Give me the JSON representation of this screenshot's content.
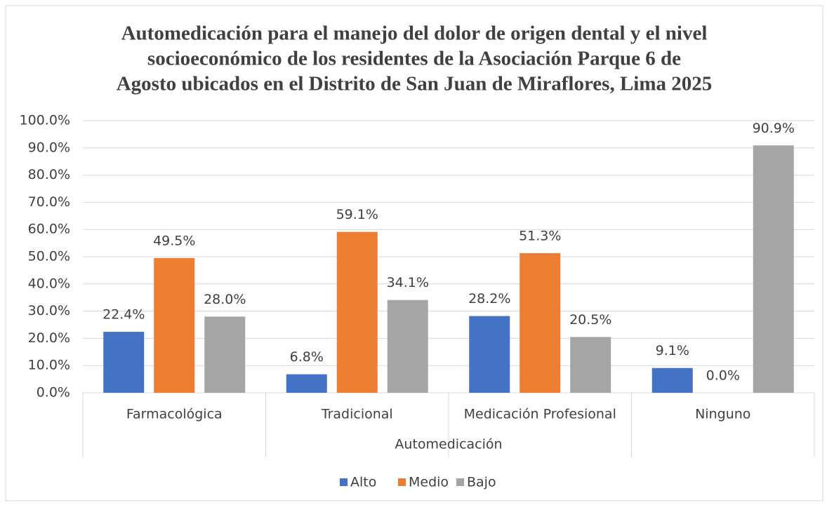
{
  "chart_data": {
    "type": "bar",
    "title": [
      "Automedicación para el manejo del dolor de origen dental y el nivel",
      "socioeconómico de los residentes de la Asociación Parque 6 de",
      "Agosto ubicados en el Distrito de San Juan de Miraflores, Lima 2025"
    ],
    "x_label": "Automedicación",
    "categories": [
      "Farmacológica",
      "Tradicional",
      "Medicación Profesional",
      "Ninguno"
    ],
    "series": [
      {
        "name": "Alto",
        "color": "#4472c4",
        "values": [
          22.4,
          6.8,
          28.2,
          9.1
        ],
        "value_labels": [
          "22.4%",
          "6.8%",
          "28.2%",
          "9.1%"
        ]
      },
      {
        "name": "Medio",
        "color": "#ed7d31",
        "values": [
          49.5,
          59.1,
          51.3,
          0.0
        ],
        "value_labels": [
          "49.5%",
          "59.1%",
          "51.3%",
          "0.0%"
        ]
      },
      {
        "name": "Bajo",
        "color": "#a5a5a5",
        "values": [
          28.0,
          34.1,
          20.5,
          90.9
        ],
        "value_labels": [
          "28.0%",
          "34.1%",
          "20.5%",
          "90.9%"
        ]
      }
    ],
    "ylim": [
      0,
      100
    ],
    "yticks": [
      {
        "value": 0,
        "label": "0.0%"
      },
      {
        "value": 10,
        "label": "10.0%"
      },
      {
        "value": 20,
        "label": "20.0%"
      },
      {
        "value": 30,
        "label": "30.0%"
      },
      {
        "value": 40,
        "label": "40.0%"
      },
      {
        "value": 50,
        "label": "50.0%"
      },
      {
        "value": 60,
        "label": "60.0%"
      },
      {
        "value": 70,
        "label": "70.0%"
      },
      {
        "value": 80,
        "label": "80.0%"
      },
      {
        "value": 90,
        "label": "90.0%"
      },
      {
        "value": 100,
        "label": "100.0%"
      }
    ],
    "grid": true,
    "legend": "bottom"
  }
}
